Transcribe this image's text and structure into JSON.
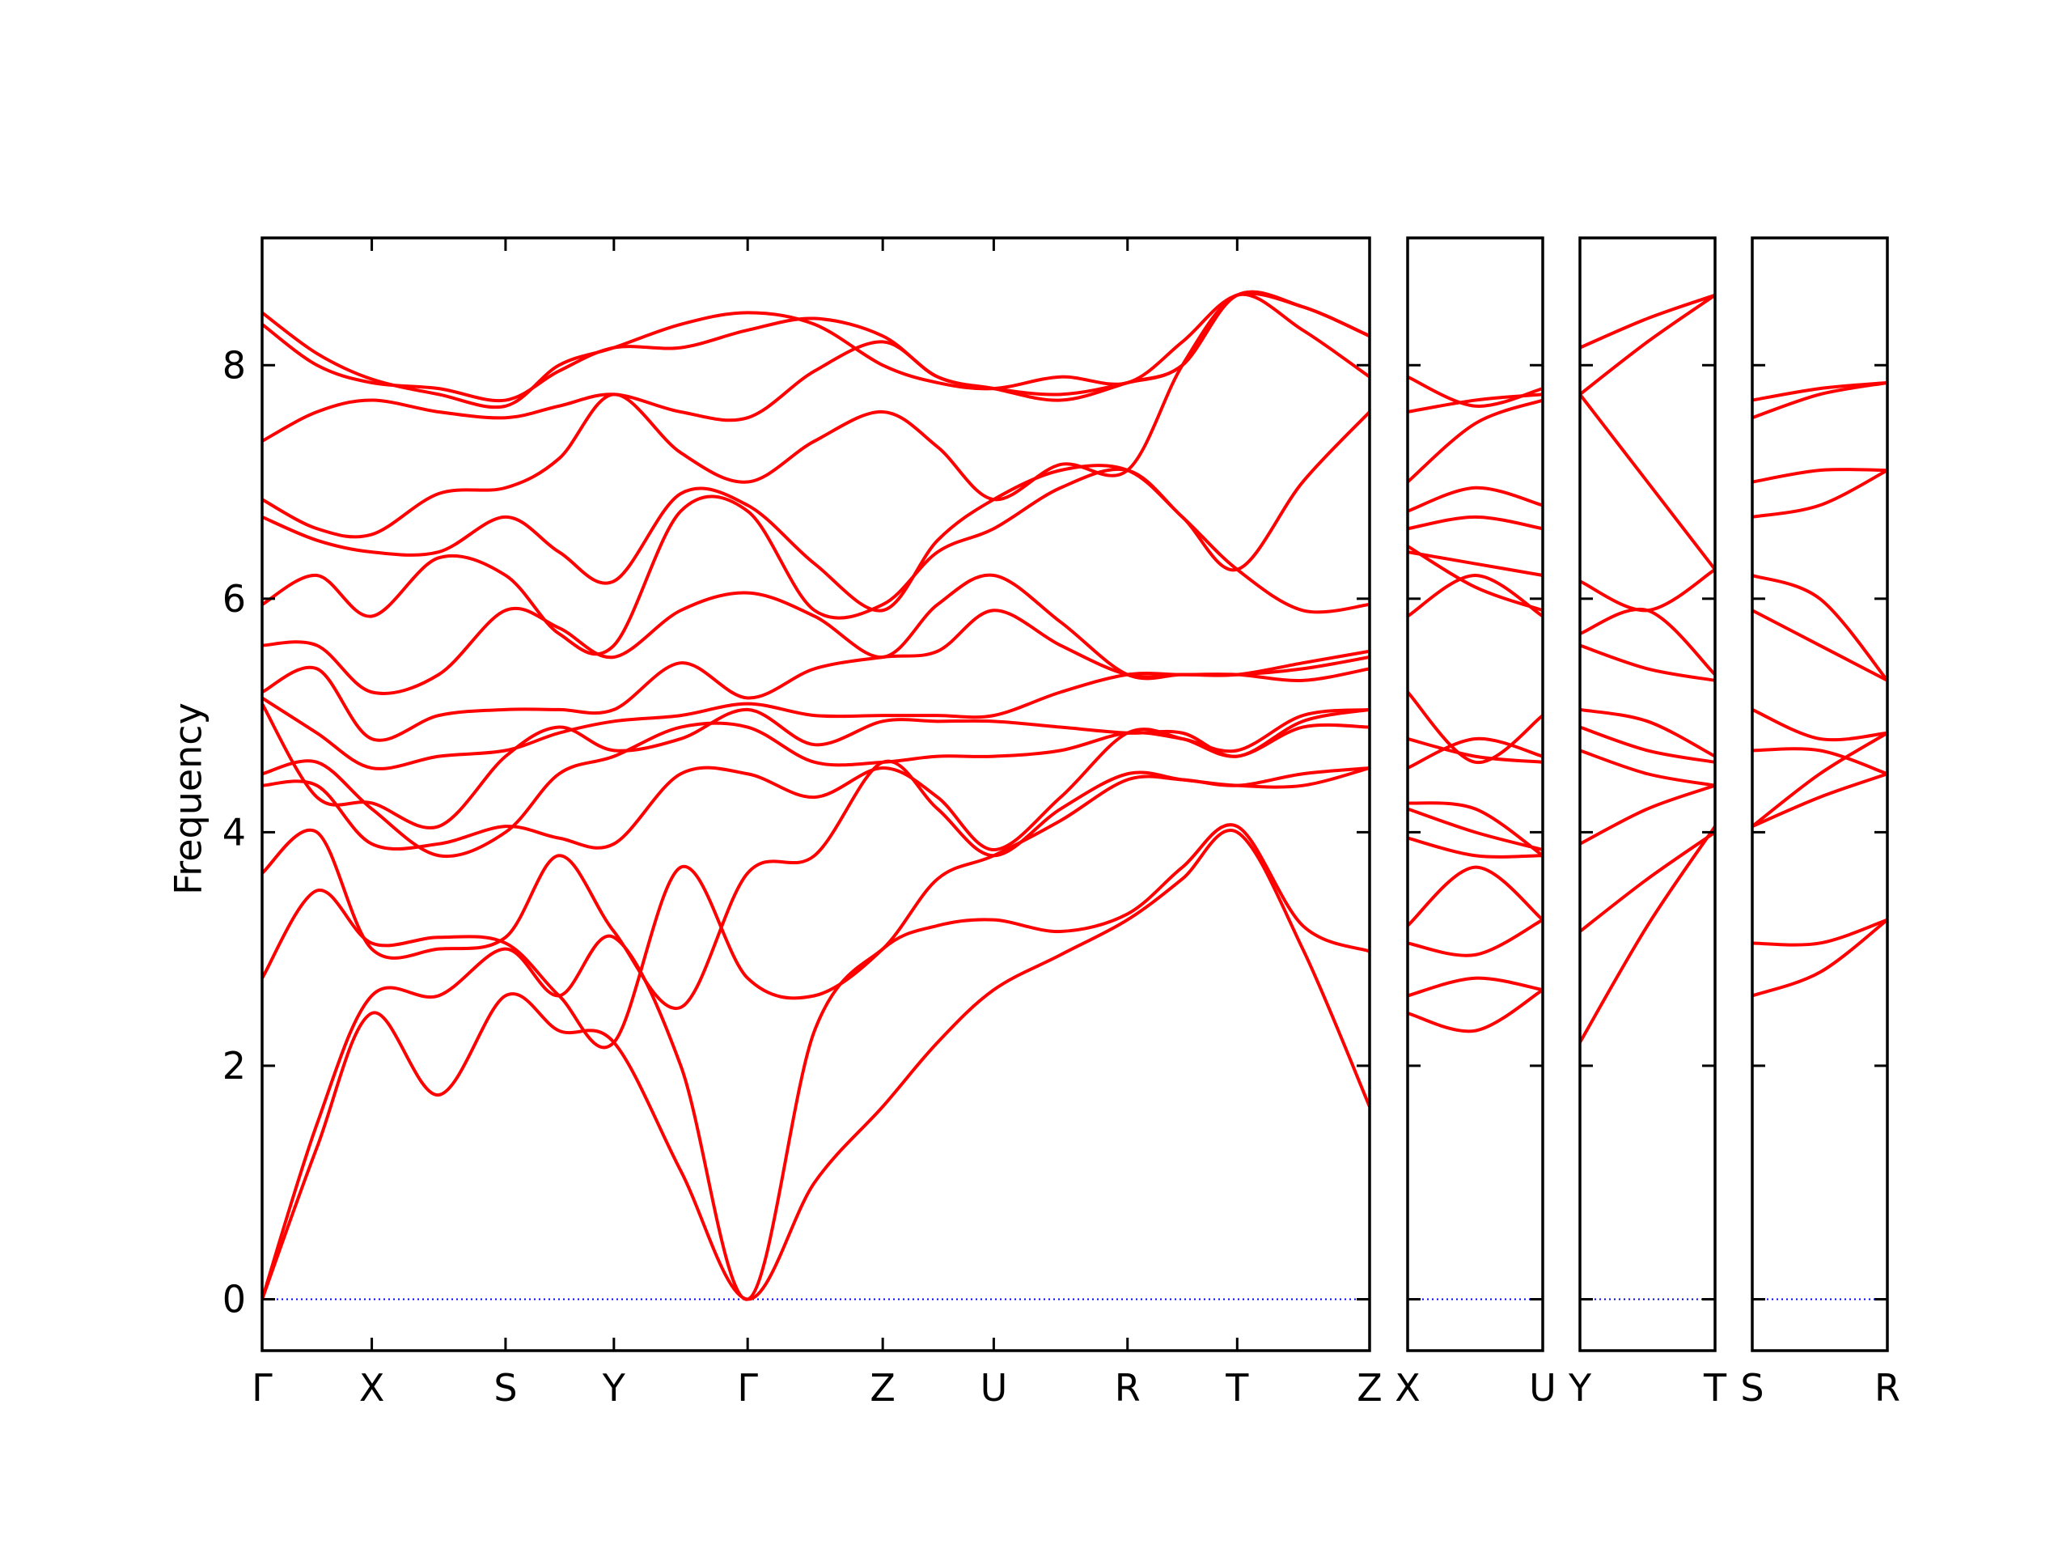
{
  "chart_data": [
    {
      "type": "line",
      "ylabel": "Frequency",
      "x": [
        0,
        0.41,
        0.82,
        1.32,
        1.82,
        2.22,
        2.63,
        3.13,
        3.63,
        4.13,
        4.64,
        5.05,
        5.47,
        5.97,
        6.47,
        6.88,
        7.29,
        7.78,
        8.28
      ],
      "xlim": [
        0,
        8.28
      ],
      "xticks": [
        {
          "value": 0,
          "label": "Γ"
        },
        {
          "value": 0.82,
          "label": "X"
        },
        {
          "value": 1.82,
          "label": "S"
        },
        {
          "value": 2.63,
          "label": "Y"
        },
        {
          "value": 3.63,
          "label": "Γ"
        },
        {
          "value": 4.64,
          "label": "Z"
        },
        {
          "value": 5.47,
          "label": "U"
        },
        {
          "value": 6.47,
          "label": "R"
        },
        {
          "value": 7.29,
          "label": "T"
        },
        {
          "value": 8.28,
          "label": "Z"
        }
      ],
      "ylim": [
        -0.44,
        9.09
      ],
      "yticks": [
        0,
        2,
        4,
        6,
        8
      ],
      "series": [
        {
          "color": "#0000ff",
          "style": "dotted",
          "values": [
            0,
            0,
            0,
            0,
            0,
            0,
            0,
            0,
            0,
            0,
            0,
            0,
            0,
            0,
            0,
            0,
            0,
            0,
            0
          ]
        },
        {
          "color": "#ff0000",
          "values": [
            0,
            1.3,
            2.45,
            1.75,
            2.6,
            2.3,
            2.2,
            1.1,
            0,
            1.0,
            1.65,
            2.2,
            2.65,
            2.95,
            3.25,
            3.6,
            4.0,
            3.0,
            1.65
          ]
        },
        {
          "color": "#ff0000",
          "values": [
            0,
            1.5,
            2.6,
            2.6,
            3.0,
            2.6,
            3.1,
            2.0,
            0,
            2.3,
            3.0,
            3.2,
            3.25,
            3.15,
            3.3,
            3.7,
            4.05,
            3.2,
            2.98
          ]
        },
        {
          "color": "#ff0000",
          "values": [
            2.75,
            3.5,
            3.05,
            3.1,
            3.05,
            2.6,
            2.2,
            3.7,
            2.75,
            2.6,
            3.0,
            3.6,
            3.8,
            4.1,
            4.45,
            4.45,
            4.4,
            4.5,
            4.55
          ]
        },
        {
          "color": "#ff0000",
          "values": [
            3.65,
            4.0,
            3.0,
            3.0,
            3.1,
            3.8,
            3.15,
            2.5,
            3.65,
            3.8,
            4.6,
            4.2,
            3.8,
            4.2,
            4.5,
            4.45,
            4.4,
            4.4,
            4.55
          ]
        },
        {
          "color": "#ff0000",
          "values": [
            4.4,
            4.4,
            3.9,
            3.9,
            4.05,
            3.95,
            3.9,
            4.5,
            4.5,
            4.3,
            4.55,
            4.3,
            3.85,
            4.3,
            4.85,
            4.8,
            4.65,
            4.9,
            4.9
          ]
        },
        {
          "color": "#ff0000",
          "values": [
            4.5,
            4.6,
            4.2,
            3.8,
            4.0,
            4.5,
            4.65,
            4.9,
            4.9,
            4.6,
            4.6,
            4.65,
            4.65,
            4.7,
            4.85,
            4.8,
            4.7,
            5.0,
            5.05
          ]
        },
        {
          "color": "#ff0000",
          "values": [
            5.1,
            4.3,
            4.25,
            4.05,
            4.65,
            4.9,
            4.7,
            4.8,
            5.05,
            4.75,
            4.95,
            4.95,
            4.95,
            4.9,
            4.85,
            4.85,
            4.65,
            4.95,
            5.05
          ]
        },
        {
          "color": "#ff0000",
          "values": [
            5.15,
            4.85,
            4.55,
            4.65,
            4.7,
            4.85,
            4.95,
            5.0,
            5.1,
            5.0,
            5.0,
            5.0,
            5.0,
            5.2,
            5.35,
            5.35,
            5.35,
            5.3,
            5.4
          ]
        },
        {
          "color": "#ff0000",
          "values": [
            5.2,
            5.4,
            4.8,
            5.0,
            5.05,
            5.05,
            5.05,
            5.45,
            5.15,
            5.4,
            5.5,
            5.55,
            5.9,
            5.6,
            5.35,
            5.35,
            5.35,
            5.4,
            5.5
          ]
        },
        {
          "color": "#ff0000",
          "values": [
            5.6,
            5.6,
            5.2,
            5.35,
            5.9,
            5.75,
            5.5,
            5.9,
            6.05,
            5.85,
            5.5,
            5.95,
            6.2,
            5.8,
            5.35,
            5.35,
            5.35,
            5.45,
            5.55
          ]
        },
        {
          "color": "#ff0000",
          "values": [
            5.95,
            6.2,
            5.85,
            6.35,
            6.2,
            5.7,
            5.6,
            6.75,
            6.75,
            5.9,
            5.95,
            6.4,
            6.6,
            6.95,
            7.1,
            6.7,
            6.25,
            5.9,
            5.95
          ]
        },
        {
          "color": "#ff0000",
          "values": [
            6.7,
            6.5,
            6.4,
            6.4,
            6.7,
            6.4,
            6.15,
            6.9,
            6.8,
            6.3,
            5.9,
            6.5,
            6.85,
            7.1,
            7.1,
            6.7,
            6.25,
            7.0,
            7.6
          ]
        },
        {
          "color": "#ff0000",
          "values": [
            6.85,
            6.6,
            6.55,
            6.9,
            6.95,
            7.2,
            7.75,
            7.25,
            7.0,
            7.35,
            7.6,
            7.3,
            6.85,
            7.15,
            7.1,
            8.0,
            8.6,
            8.5,
            8.25
          ]
        },
        {
          "color": "#ff0000",
          "values": [
            7.35,
            7.6,
            7.7,
            7.6,
            7.55,
            7.65,
            7.75,
            7.6,
            7.55,
            7.95,
            8.2,
            7.9,
            7.8,
            7.75,
            7.85,
            8.0,
            8.6,
            8.5,
            8.25
          ]
        },
        {
          "color": "#ff0000",
          "values": [
            8.35,
            8.0,
            7.85,
            7.8,
            7.7,
            7.95,
            8.15,
            8.15,
            8.3,
            8.4,
            8.25,
            7.9,
            7.8,
            7.7,
            7.85,
            8.0,
            8.6,
            8.3,
            7.9
          ]
        },
        {
          "color": "#ff0000",
          "values": [
            8.45,
            8.1,
            7.88,
            7.75,
            7.65,
            8.0,
            8.15,
            8.35,
            8.45,
            8.35,
            8.0,
            7.85,
            7.8,
            7.9,
            7.85,
            8.2,
            8.6,
            8.5,
            8.25
          ]
        }
      ]
    },
    {
      "type": "line",
      "x": [
        0,
        0.5,
        1
      ],
      "xlim": [
        0,
        1
      ],
      "xticks": [
        {
          "value": 0,
          "label": "X"
        },
        {
          "value": 1,
          "label": "U"
        }
      ],
      "ylim": [
        -0.44,
        9.09
      ],
      "yticks": [
        0,
        2,
        4,
        6,
        8
      ],
      "series": [
        {
          "color": "#0000ff",
          "style": "dotted",
          "values": [
            0,
            0,
            0
          ]
        },
        {
          "color": "#ff0000",
          "values": [
            2.45,
            2.3,
            2.65
          ]
        },
        {
          "color": "#ff0000",
          "values": [
            2.6,
            2.75,
            2.65
          ]
        },
        {
          "color": "#ff0000",
          "values": [
            3.05,
            2.95,
            3.25
          ]
        },
        {
          "color": "#ff0000",
          "values": [
            3.2,
            3.7,
            3.25
          ]
        },
        {
          "color": "#ff0000",
          "values": [
            3.95,
            3.8,
            3.8
          ]
        },
        {
          "color": "#ff0000",
          "values": [
            4.2,
            4.0,
            3.85
          ]
        },
        {
          "color": "#ff0000",
          "values": [
            4.25,
            4.2,
            3.8
          ]
        },
        {
          "color": "#ff0000",
          "values": [
            4.55,
            4.8,
            4.65
          ]
        },
        {
          "color": "#ff0000",
          "values": [
            4.8,
            4.65,
            4.6
          ]
        },
        {
          "color": "#ff0000",
          "values": [
            5.2,
            4.6,
            5.0
          ]
        },
        {
          "color": "#ff0000",
          "values": [
            5.85,
            6.2,
            5.85
          ]
        },
        {
          "color": "#ff0000",
          "values": [
            6.4,
            6.3,
            6.2
          ]
        },
        {
          "color": "#ff0000",
          "values": [
            6.45,
            6.1,
            5.9
          ]
        },
        {
          "color": "#ff0000",
          "values": [
            6.6,
            6.7,
            6.6
          ]
        },
        {
          "color": "#ff0000",
          "values": [
            6.75,
            6.95,
            6.8
          ]
        },
        {
          "color": "#ff0000",
          "values": [
            7.0,
            7.5,
            7.7
          ]
        },
        {
          "color": "#ff0000",
          "values": [
            7.6,
            7.7,
            7.75
          ]
        },
        {
          "color": "#ff0000",
          "values": [
            7.9,
            7.65,
            7.8
          ]
        }
      ]
    },
    {
      "type": "line",
      "x": [
        0,
        0.5,
        1
      ],
      "xlim": [
        0,
        1
      ],
      "xticks": [
        {
          "value": 0,
          "label": "Y"
        },
        {
          "value": 1,
          "label": "T"
        }
      ],
      "ylim": [
        -0.44,
        9.09
      ],
      "yticks": [
        0,
        2,
        4,
        6,
        8
      ],
      "series": [
        {
          "color": "#0000ff",
          "style": "dotted",
          "values": [
            0,
            0,
            0
          ]
        },
        {
          "color": "#ff0000",
          "values": [
            2.2,
            3.2,
            4.05
          ]
        },
        {
          "color": "#ff0000",
          "values": [
            3.15,
            3.6,
            4.0
          ]
        },
        {
          "color": "#ff0000",
          "values": [
            3.9,
            4.2,
            4.4
          ]
        },
        {
          "color": "#ff0000",
          "values": [
            4.7,
            4.5,
            4.4
          ]
        },
        {
          "color": "#ff0000",
          "values": [
            4.9,
            4.7,
            4.6
          ]
        },
        {
          "color": "#ff0000",
          "values": [
            5.05,
            4.95,
            4.65
          ]
        },
        {
          "color": "#ff0000",
          "values": [
            5.6,
            5.4,
            5.3
          ]
        },
        {
          "color": "#ff0000",
          "values": [
            5.7,
            5.9,
            5.35
          ]
        },
        {
          "color": "#ff0000",
          "values": [
            6.15,
            5.9,
            6.25
          ]
        },
        {
          "color": "#ff0000",
          "values": [
            7.75,
            7.0,
            6.25
          ]
        },
        {
          "color": "#ff0000",
          "values": [
            7.75,
            8.2,
            8.6
          ]
        },
        {
          "color": "#ff0000",
          "values": [
            8.15,
            8.4,
            8.6
          ]
        }
      ]
    },
    {
      "type": "line",
      "x": [
        0,
        0.5,
        1
      ],
      "xlim": [
        0,
        1
      ],
      "xticks": [
        {
          "value": 0,
          "label": "S"
        },
        {
          "value": 1,
          "label": "R"
        }
      ],
      "ylim": [
        -0.44,
        9.09
      ],
      "yticks": [
        0,
        2,
        4,
        6,
        8
      ],
      "series": [
        {
          "color": "#0000ff",
          "style": "dotted",
          "values": [
            0,
            0,
            0
          ]
        },
        {
          "color": "#ff0000",
          "values": [
            2.6,
            2.8,
            3.25
          ]
        },
        {
          "color": "#ff0000",
          "values": [
            3.05,
            3.05,
            3.25
          ]
        },
        {
          "color": "#ff0000",
          "values": [
            4.05,
            4.3,
            4.5
          ]
        },
        {
          "color": "#ff0000",
          "values": [
            4.05,
            4.5,
            4.85
          ]
        },
        {
          "color": "#ff0000",
          "values": [
            4.7,
            4.7,
            4.5
          ]
        },
        {
          "color": "#ff0000",
          "values": [
            5.05,
            4.8,
            4.85
          ]
        },
        {
          "color": "#ff0000",
          "values": [
            5.9,
            5.6,
            5.3
          ]
        },
        {
          "color": "#ff0000",
          "values": [
            6.2,
            6.0,
            5.3
          ]
        },
        {
          "color": "#ff0000",
          "values": [
            6.7,
            6.8,
            7.1
          ]
        },
        {
          "color": "#ff0000",
          "values": [
            7.0,
            7.1,
            7.1
          ]
        },
        {
          "color": "#ff0000",
          "values": [
            7.55,
            7.75,
            7.85
          ]
        },
        {
          "color": "#ff0000",
          "values": [
            7.7,
            7.8,
            7.85
          ]
        }
      ]
    }
  ]
}
